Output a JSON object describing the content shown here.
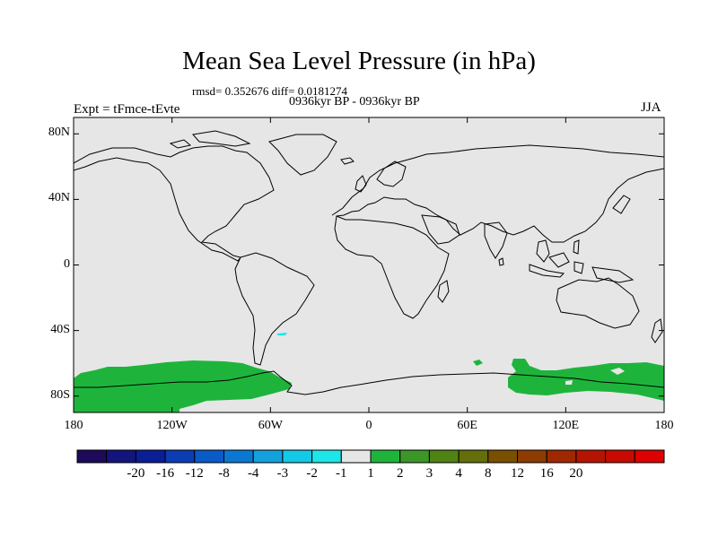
{
  "title": "Mean Sea Level Pressure (in hPa)",
  "stats": "rmsd= 0.352676 diff= 0.0181274",
  "period": "0936kyr BP - 0936kyr BP",
  "experiment": "Expt = tFmce-tEvte",
  "season": "JJA",
  "colors": {
    "background": "#e6e6e6",
    "positive_anomaly": "#1eb43c",
    "negative_anomaly": "#1ee6e6",
    "coastline": "#000000"
  },
  "map": {
    "projection": "cylindrical equidistant",
    "lon_range": [
      -180,
      180
    ],
    "lat_range": [
      -90,
      90
    ],
    "lat_ticks": [
      {
        "value": 80,
        "label": "80N"
      },
      {
        "value": 40,
        "label": "40N"
      },
      {
        "value": 0,
        "label": "0"
      },
      {
        "value": -40,
        "label": "40S"
      },
      {
        "value": -80,
        "label": "80S"
      }
    ],
    "lon_ticks": [
      {
        "value": -180,
        "label": "180"
      },
      {
        "value": -120,
        "label": "120W"
      },
      {
        "value": -60,
        "label": "60W"
      },
      {
        "value": 0,
        "label": "0"
      },
      {
        "value": 60,
        "label": "60E"
      },
      {
        "value": 120,
        "label": "120E"
      },
      {
        "value": 180,
        "label": "180"
      }
    ]
  },
  "colorbar": {
    "colors": [
      "#1e0a5a",
      "#14147d",
      "#0a1e96",
      "#0a3cb4",
      "#0a5ac8",
      "#0a78d2",
      "#14a0dc",
      "#14c8e6",
      "#1ee6e6",
      "#e6e6e6",
      "#1eb43c",
      "#3c9628",
      "#508214",
      "#646e0a",
      "#785000",
      "#8c3c00",
      "#a02800",
      "#b41400",
      "#c80a00",
      "#dc0000"
    ],
    "labels": [
      "-20",
      "-16",
      "-12",
      "-8",
      "-4",
      "-3",
      "-2",
      "-1",
      "1",
      "2",
      "3",
      "4",
      "8",
      "12",
      "16",
      "20"
    ]
  }
}
